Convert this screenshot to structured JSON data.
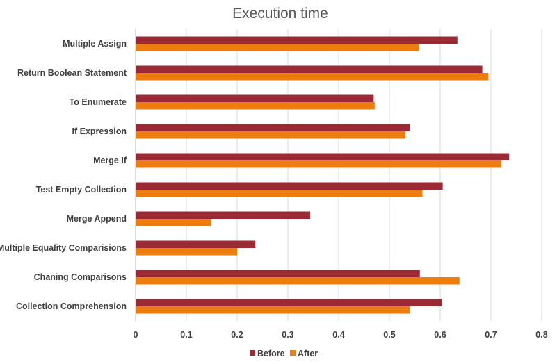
{
  "chart_data": {
    "type": "bar",
    "orientation": "horizontal",
    "title": "Execution time",
    "xlabel": "",
    "ylabel": "",
    "categories": [
      "Multiple Assign",
      "Return Boolean Statement",
      "To Enumerate",
      "If Expression",
      "Merge If",
      "Test Empty Collection",
      "Merge Append",
      "Multiple Equality Comparisions",
      "Chaning Comparisons",
      "Collection Comprehension"
    ],
    "series": [
      {
        "name": "Before",
        "color": "#9b2a35",
        "values": [
          0.634,
          0.683,
          0.469,
          0.541,
          0.736,
          0.605,
          0.344,
          0.236,
          0.56,
          0.603
        ]
      },
      {
        "name": "After",
        "color": "#ee7d10",
        "values": [
          0.558,
          0.695,
          0.471,
          0.531,
          0.72,
          0.565,
          0.148,
          0.2,
          0.638,
          0.54
        ]
      }
    ],
    "xlim": [
      0,
      0.8
    ],
    "xticks": [
      "0",
      "0.1",
      "0.2",
      "0.3",
      "0.4",
      "0.5",
      "0.6",
      "0.7",
      "0.8"
    ],
    "grid": true,
    "legend": "bottom"
  }
}
